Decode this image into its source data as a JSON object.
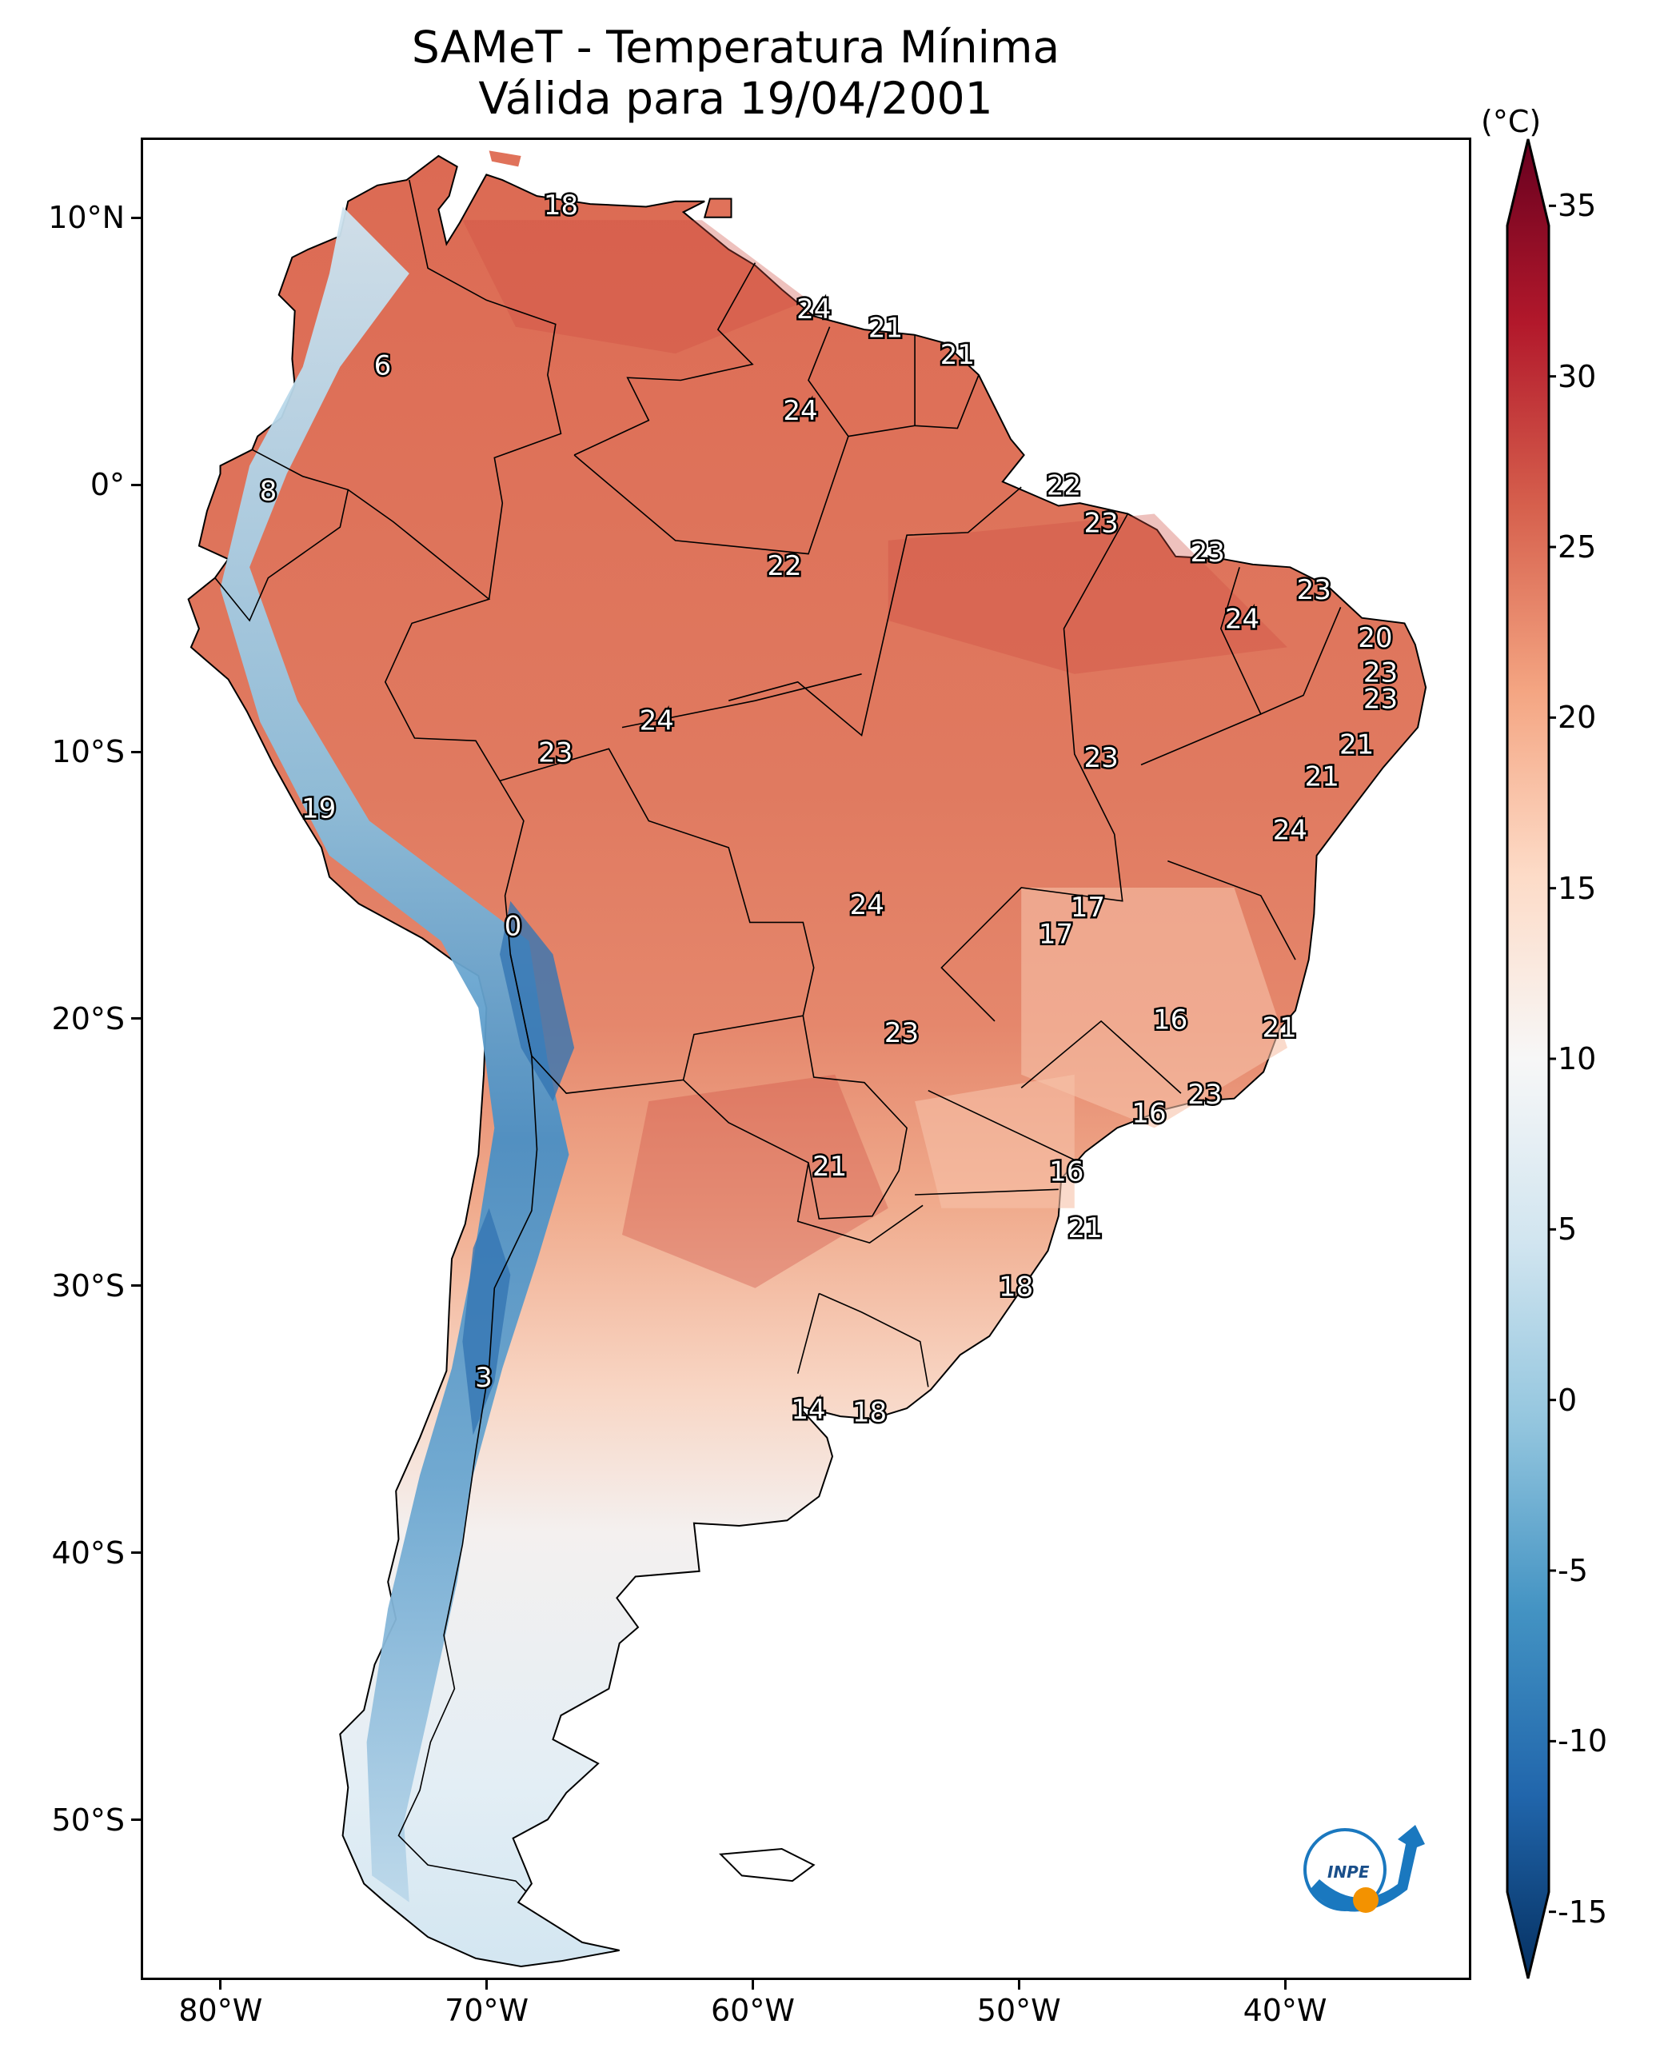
{
  "title": {
    "line1": "SAMeT - Temperatura Mínima",
    "line2": "Válida para 19/04/2001"
  },
  "map": {
    "region": "South America",
    "lon_range": [
      -83,
      -33
    ],
    "lat_range": [
      -56,
      13
    ],
    "x_ticks": [
      {
        "lon": -80,
        "label": "80°W"
      },
      {
        "lon": -70,
        "label": "70°W"
      },
      {
        "lon": -60,
        "label": "60°W"
      },
      {
        "lon": -50,
        "label": "50°W"
      },
      {
        "lon": -40,
        "label": "40°W"
      }
    ],
    "y_ticks": [
      {
        "lat": 10,
        "label": "10°N"
      },
      {
        "lat": 0,
        "label": "0°"
      },
      {
        "lat": -10,
        "label": "10°S"
      },
      {
        "lat": -20,
        "label": "20°S"
      },
      {
        "lat": -30,
        "label": "30°S"
      },
      {
        "lat": -40,
        "label": "40°S"
      },
      {
        "lat": -50,
        "label": "50°S"
      }
    ],
    "temperature_labels": [
      {
        "lon": -67.3,
        "lat": 10.5,
        "text": "18"
      },
      {
        "lon": -74.0,
        "lat": 4.5,
        "text": "6"
      },
      {
        "lon": -78.3,
        "lat": -0.2,
        "text": "8"
      },
      {
        "lon": -57.8,
        "lat": 6.6,
        "text": "24"
      },
      {
        "lon": -55.1,
        "lat": 5.9,
        "text": "21"
      },
      {
        "lon": -52.4,
        "lat": 4.9,
        "text": "21"
      },
      {
        "lon": -58.3,
        "lat": 2.8,
        "text": "24"
      },
      {
        "lon": -48.4,
        "lat": 0.0,
        "text": "22"
      },
      {
        "lon": -47.0,
        "lat": -1.4,
        "text": "23"
      },
      {
        "lon": -43.0,
        "lat": -2.5,
        "text": "23"
      },
      {
        "lon": -58.9,
        "lat": -3.0,
        "text": "22"
      },
      {
        "lon": -39.0,
        "lat": -3.9,
        "text": "23"
      },
      {
        "lon": -41.7,
        "lat": -5.0,
        "text": "24"
      },
      {
        "lon": -36.7,
        "lat": -5.7,
        "text": "20"
      },
      {
        "lon": -36.5,
        "lat": -7.0,
        "text": "23"
      },
      {
        "lon": -36.5,
        "lat": -8.0,
        "text": "23"
      },
      {
        "lon": -63.7,
        "lat": -8.8,
        "text": "24"
      },
      {
        "lon": -67.5,
        "lat": -10.0,
        "text": "23"
      },
      {
        "lon": -47.0,
        "lat": -10.2,
        "text": "23"
      },
      {
        "lon": -37.4,
        "lat": -9.7,
        "text": "21"
      },
      {
        "lon": -38.7,
        "lat": -10.9,
        "text": "21"
      },
      {
        "lon": -39.9,
        "lat": -12.9,
        "text": "24"
      },
      {
        "lon": -76.4,
        "lat": -12.1,
        "text": "19"
      },
      {
        "lon": -69.1,
        "lat": -16.5,
        "text": "0"
      },
      {
        "lon": -55.8,
        "lat": -15.7,
        "text": "24"
      },
      {
        "lon": -47.5,
        "lat": -15.8,
        "text": "17"
      },
      {
        "lon": -48.7,
        "lat": -16.8,
        "text": "17"
      },
      {
        "lon": -54.5,
        "lat": -20.5,
        "text": "23"
      },
      {
        "lon": -44.4,
        "lat": -20.0,
        "text": "16"
      },
      {
        "lon": -40.3,
        "lat": -20.3,
        "text": "21"
      },
      {
        "lon": -43.1,
        "lat": -22.8,
        "text": "23"
      },
      {
        "lon": -45.2,
        "lat": -23.5,
        "text": "16"
      },
      {
        "lon": -57.2,
        "lat": -25.5,
        "text": "21"
      },
      {
        "lon": -48.3,
        "lat": -25.7,
        "text": "16"
      },
      {
        "lon": -47.6,
        "lat": -27.8,
        "text": "21"
      },
      {
        "lon": -50.2,
        "lat": -30.0,
        "text": "18"
      },
      {
        "lon": -70.2,
        "lat": -33.4,
        "text": "3"
      },
      {
        "lon": -58.0,
        "lat": -34.6,
        "text": "14"
      },
      {
        "lon": -55.7,
        "lat": -34.7,
        "text": "18"
      }
    ]
  },
  "colorbar": {
    "unit": "(°C)",
    "vmin": -17,
    "vmax": 37,
    "ticks": [
      {
        "value": 35,
        "label": "35"
      },
      {
        "value": 30,
        "label": "30"
      },
      {
        "value": 25,
        "label": "25"
      },
      {
        "value": 20,
        "label": "20"
      },
      {
        "value": 15,
        "label": "15"
      },
      {
        "value": 10,
        "label": "10"
      },
      {
        "value": 5,
        "label": "5"
      },
      {
        "value": 0,
        "label": "0"
      },
      {
        "value": -5,
        "label": "-5"
      },
      {
        "value": -10,
        "label": "-10"
      },
      {
        "value": -15,
        "label": "-15"
      }
    ],
    "colors": [
      "#053061",
      "#2166ac",
      "#4393c3",
      "#92c5de",
      "#d1e5f0",
      "#f7f7f7",
      "#fddbc7",
      "#f4a582",
      "#d6604d",
      "#b2182b",
      "#67001f"
    ]
  },
  "logo": {
    "text": "INPE",
    "colors": {
      "blue": "#1a78bf",
      "orange": "#f39200"
    }
  },
  "colors": {
    "warm_land": "#e0725a",
    "hot_land": "#cf4d42",
    "mild_land": "#f6c1a8",
    "cool_land": "#eef3f6",
    "cold_land": "#bcd9ea",
    "andes": "#6fa8d2",
    "andes_peak": "#3576b3"
  }
}
